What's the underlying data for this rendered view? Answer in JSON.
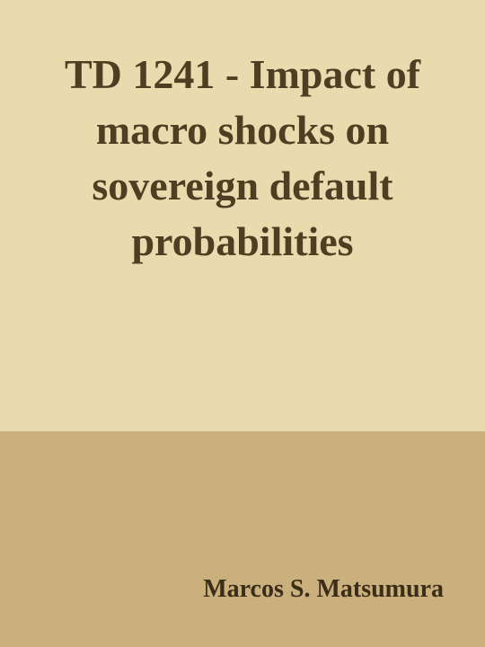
{
  "cover": {
    "title": "TD 1241 - Impact of macro shocks on sovereign default probabilities",
    "author": "Marcos S. Matsumura",
    "colors": {
      "top_background": "#e8dbae",
      "bottom_background": "#c9b07d",
      "title_text": "#4f3e22",
      "author_text": "#3b2d18"
    }
  }
}
